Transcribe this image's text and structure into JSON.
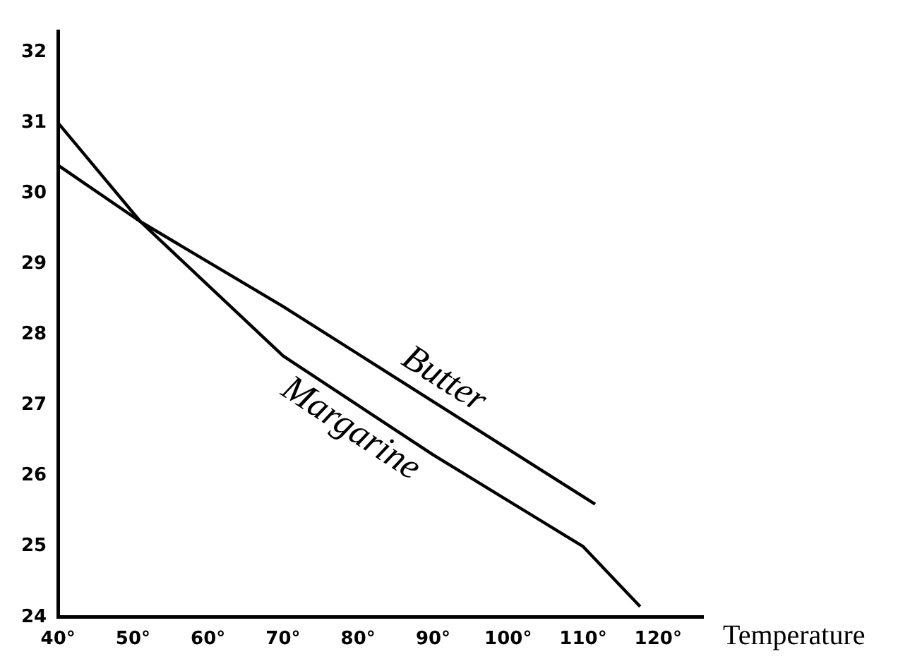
{
  "chart_data": {
    "type": "line",
    "xlabel": "Temperature",
    "xlim": [
      40,
      126
    ],
    "ylim": [
      24,
      32.3
    ],
    "xticks": [
      {
        "value": 40,
        "label": "40°"
      },
      {
        "value": 50,
        "label": "50°"
      },
      {
        "value": 60,
        "label": "60°"
      },
      {
        "value": 70,
        "label": "70°"
      },
      {
        "value": 80,
        "label": "80°"
      },
      {
        "value": 90,
        "label": "90°"
      },
      {
        "value": 100,
        "label": "100°"
      },
      {
        "value": 110,
        "label": "110°"
      },
      {
        "value": 120,
        "label": "120°"
      }
    ],
    "yticks": [
      24,
      25,
      26,
      27,
      28,
      29,
      30,
      31,
      32
    ],
    "series": [
      {
        "name": "Butter",
        "color": "#000000",
        "x": [
          40,
          51,
          70,
          111.6
        ],
        "values": [
          30.4,
          29.6,
          28.4,
          25.6
        ]
      },
      {
        "name": "Margarine",
        "color": "#000000",
        "x": [
          40,
          51,
          70,
          90,
          110,
          117.6
        ],
        "values": [
          31.0,
          29.6,
          27.7,
          26.3,
          25.0,
          24.15
        ]
      }
    ],
    "grid": false,
    "legend": false,
    "marker": "none",
    "line_style": "solid"
  }
}
